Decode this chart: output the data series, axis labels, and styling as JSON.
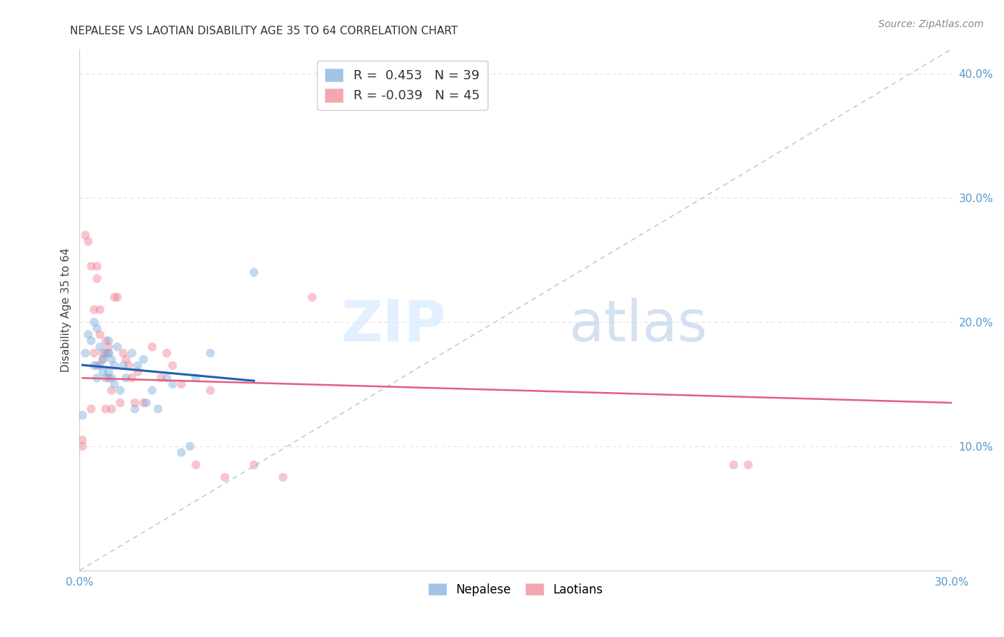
{
  "title": "NEPALESE VS LAOTIAN DISABILITY AGE 35 TO 64 CORRELATION CHART",
  "source": "Source: ZipAtlas.com",
  "ylabel": "Disability Age 35 to 64",
  "xlim": [
    0.0,
    0.3
  ],
  "ylim": [
    0.0,
    0.42
  ],
  "background_color": "#ffffff",
  "grid_color": "#e0e0e0",
  "diagonal_line_color": "#a8c8e8",
  "nepalese_color": "#7aabdb",
  "laotian_color": "#f08090",
  "nepalese_line_color": "#2060b0",
  "laotian_line_color": "#e06080",
  "nepalese_R": 0.453,
  "nepalese_N": 39,
  "laotian_R": -0.039,
  "laotian_N": 45,
  "legend_label_nepalese": "Nepalese",
  "legend_label_laotian": "Laotians",
  "nepalese_x": [
    0.001,
    0.002,
    0.003,
    0.004,
    0.005,
    0.005,
    0.006,
    0.006,
    0.007,
    0.007,
    0.008,
    0.008,
    0.009,
    0.009,
    0.01,
    0.01,
    0.01,
    0.011,
    0.011,
    0.012,
    0.012,
    0.013,
    0.014,
    0.015,
    0.016,
    0.018,
    0.019,
    0.02,
    0.022,
    0.023,
    0.025,
    0.027,
    0.03,
    0.032,
    0.035,
    0.038,
    0.04,
    0.045,
    0.06
  ],
  "nepalese_y": [
    0.125,
    0.175,
    0.19,
    0.185,
    0.165,
    0.2,
    0.155,
    0.195,
    0.165,
    0.18,
    0.17,
    0.16,
    0.175,
    0.155,
    0.16,
    0.175,
    0.185,
    0.155,
    0.17,
    0.15,
    0.165,
    0.18,
    0.145,
    0.165,
    0.155,
    0.175,
    0.13,
    0.165,
    0.17,
    0.135,
    0.145,
    0.13,
    0.155,
    0.15,
    0.095,
    0.1,
    0.155,
    0.175,
    0.24
  ],
  "laotian_x": [
    0.001,
    0.001,
    0.002,
    0.003,
    0.004,
    0.004,
    0.005,
    0.005,
    0.006,
    0.006,
    0.006,
    0.007,
    0.007,
    0.008,
    0.008,
    0.009,
    0.009,
    0.01,
    0.01,
    0.01,
    0.011,
    0.011,
    0.012,
    0.013,
    0.014,
    0.015,
    0.016,
    0.017,
    0.018,
    0.019,
    0.02,
    0.022,
    0.025,
    0.028,
    0.03,
    0.032,
    0.035,
    0.04,
    0.045,
    0.05,
    0.06,
    0.07,
    0.08,
    0.225,
    0.23
  ],
  "laotian_y": [
    0.105,
    0.1,
    0.27,
    0.265,
    0.245,
    0.13,
    0.21,
    0.175,
    0.245,
    0.235,
    0.165,
    0.21,
    0.19,
    0.175,
    0.17,
    0.185,
    0.13,
    0.18,
    0.175,
    0.155,
    0.145,
    0.13,
    0.22,
    0.22,
    0.135,
    0.175,
    0.17,
    0.165,
    0.155,
    0.135,
    0.16,
    0.135,
    0.18,
    0.155,
    0.175,
    0.165,
    0.15,
    0.085,
    0.145,
    0.075,
    0.085,
    0.075,
    0.22,
    0.085,
    0.085
  ],
  "marker_size": 80,
  "marker_alpha": 0.45,
  "marker_edge_width": 0.0
}
